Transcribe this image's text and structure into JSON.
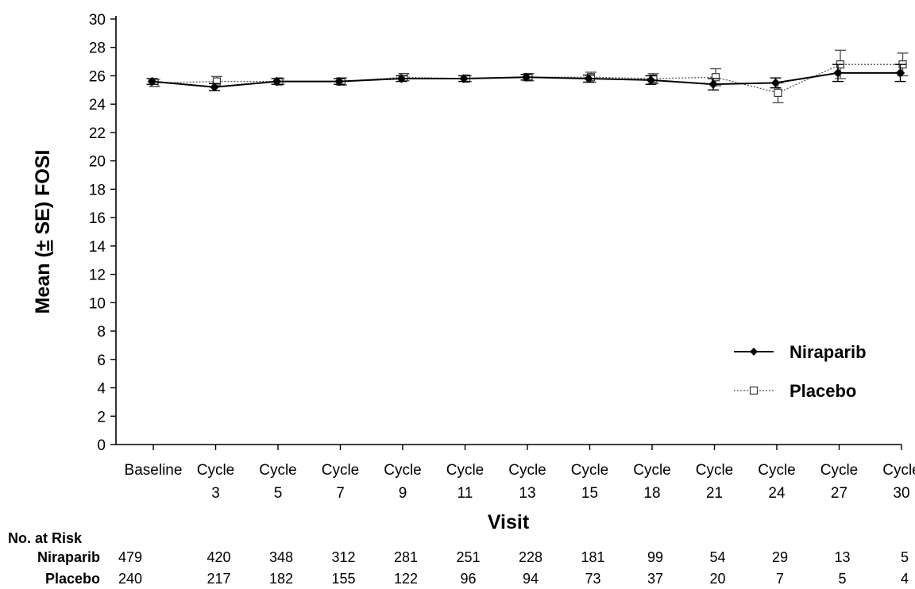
{
  "chart_data": {
    "type": "line",
    "title": "",
    "xlabel": "Visit",
    "ylabel": "Mean (± SE) FOSI",
    "ylabel_parts": [
      "Mean (",
      "±",
      " SE) FOSI"
    ],
    "ylim": [
      0,
      30
    ],
    "yticks": [
      0,
      2,
      4,
      6,
      8,
      10,
      12,
      14,
      16,
      18,
      20,
      22,
      24,
      26,
      28,
      30
    ],
    "categories": [
      [
        "Baseline"
      ],
      [
        "Cycle",
        "3"
      ],
      [
        "Cycle",
        "5"
      ],
      [
        "Cycle",
        "7"
      ],
      [
        "Cycle",
        "9"
      ],
      [
        "Cycle",
        "11"
      ],
      [
        "Cycle",
        "13"
      ],
      [
        "Cycle",
        "15"
      ],
      [
        "Cycle",
        "18"
      ],
      [
        "Cycle",
        "21"
      ],
      [
        "Cycle",
        "24"
      ],
      [
        "Cycle",
        "27"
      ],
      [
        "Cycle",
        "30"
      ]
    ],
    "series": [
      {
        "name": "Niraparib",
        "color": "#000000",
        "marker": "filled-diamond",
        "line": "solid",
        "values": [
          25.6,
          25.2,
          25.6,
          25.6,
          25.8,
          25.8,
          25.9,
          25.8,
          25.7,
          25.4,
          25.5,
          26.2,
          26.2
        ],
        "se": [
          0.2,
          0.25,
          0.2,
          0.2,
          0.2,
          0.2,
          0.2,
          0.25,
          0.3,
          0.4,
          0.35,
          0.6,
          0.6
        ]
      },
      {
        "name": "Placebo",
        "color": "#555555",
        "marker": "open-square",
        "line": "dotted",
        "values": [
          25.5,
          25.6,
          25.6,
          25.6,
          25.9,
          25.8,
          25.9,
          25.9,
          25.8,
          25.9,
          24.8,
          26.8,
          26.8
        ],
        "se": [
          0.25,
          0.35,
          0.2,
          0.25,
          0.25,
          0.2,
          0.25,
          0.35,
          0.35,
          0.6,
          0.7,
          1.0,
          0.8
        ]
      }
    ],
    "grid": false,
    "legend_position": "bottom-right"
  },
  "risk_table": {
    "header": "No. at Risk",
    "rows": [
      {
        "label": "Niraparib",
        "values": [
          "479",
          "420",
          "348",
          "312",
          "281",
          "251",
          "228",
          "181",
          "99",
          "54",
          "29",
          "13",
          "5"
        ]
      },
      {
        "label": "Placebo",
        "values": [
          "240",
          "217",
          "182",
          "155",
          "122",
          "96",
          "94",
          "73",
          "37",
          "20",
          "7",
          "5",
          "4"
        ]
      }
    ]
  }
}
